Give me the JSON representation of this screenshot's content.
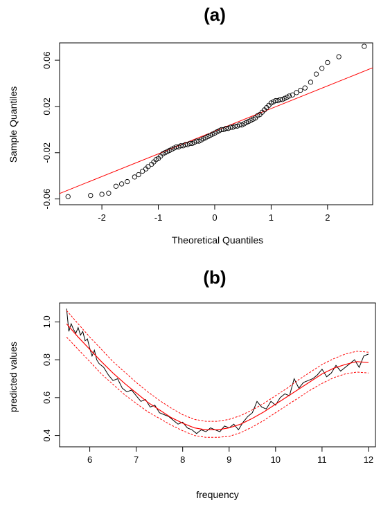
{
  "chart_data": [
    {
      "type": "scatter",
      "panel_label": "(a)",
      "xlabel": "Theoretical Quantiles",
      "ylabel": "Sample Quantiles",
      "xlim": [
        -2.75,
        2.8
      ],
      "ylim": [
        -0.065,
        0.075
      ],
      "xticks": [
        -2,
        -1,
        0,
        1,
        2
      ],
      "xtick_labels": [
        "-2",
        "-1",
        "0",
        "1",
        "2"
      ],
      "yticks": [
        -0.06,
        -0.02,
        0.02,
        0.06
      ],
      "ytick_labels": [
        "-0.06",
        "-0.02",
        "0.02",
        "0.06"
      ],
      "grid": false,
      "point_marker": "open-circle",
      "point_color": "#000000",
      "line_color": "#ff0000",
      "reference_line": {
        "intercept": -0.0014,
        "slope": 0.0196
      },
      "points": [
        [
          -2.6,
          -0.058
        ],
        [
          -2.2,
          -0.057
        ],
        [
          -2.0,
          -0.056
        ],
        [
          -1.88,
          -0.055
        ],
        [
          -1.75,
          -0.049
        ],
        [
          -1.65,
          -0.047
        ],
        [
          -1.55,
          -0.045
        ],
        [
          -1.42,
          -0.041
        ],
        [
          -1.35,
          -0.039
        ],
        [
          -1.28,
          -0.036
        ],
        [
          -1.22,
          -0.034
        ],
        [
          -1.18,
          -0.032
        ],
        [
          -1.12,
          -0.03
        ],
        [
          -1.08,
          -0.028
        ],
        [
          -1.04,
          -0.026
        ],
        [
          -1.0,
          -0.025
        ],
        [
          -0.96,
          -0.023
        ],
        [
          -0.92,
          -0.021
        ],
        [
          -0.88,
          -0.02
        ],
        [
          -0.84,
          -0.019
        ],
        [
          -0.8,
          -0.018
        ],
        [
          -0.76,
          -0.017
        ],
        [
          -0.72,
          -0.016
        ],
        [
          -0.68,
          -0.015
        ],
        [
          -0.64,
          -0.015
        ],
        [
          -0.6,
          -0.014
        ],
        [
          -0.56,
          -0.014
        ],
        [
          -0.52,
          -0.013
        ],
        [
          -0.48,
          -0.013
        ],
        [
          -0.44,
          -0.012
        ],
        [
          -0.4,
          -0.012
        ],
        [
          -0.36,
          -0.011
        ],
        [
          -0.32,
          -0.01
        ],
        [
          -0.28,
          -0.01
        ],
        [
          -0.24,
          -0.009
        ],
        [
          -0.2,
          -0.008
        ],
        [
          -0.16,
          -0.007
        ],
        [
          -0.12,
          -0.006
        ],
        [
          -0.08,
          -0.005
        ],
        [
          -0.04,
          -0.004
        ],
        [
          0.0,
          -0.003
        ],
        [
          0.04,
          -0.002
        ],
        [
          0.08,
          -0.001
        ],
        [
          0.12,
          0.0
        ],
        [
          0.16,
          0.0
        ],
        [
          0.2,
          0.001
        ],
        [
          0.24,
          0.001
        ],
        [
          0.28,
          0.002
        ],
        [
          0.32,
          0.002
        ],
        [
          0.36,
          0.003
        ],
        [
          0.4,
          0.003
        ],
        [
          0.44,
          0.004
        ],
        [
          0.48,
          0.004
        ],
        [
          0.52,
          0.005
        ],
        [
          0.56,
          0.006
        ],
        [
          0.6,
          0.007
        ],
        [
          0.64,
          0.008
        ],
        [
          0.68,
          0.009
        ],
        [
          0.72,
          0.01
        ],
        [
          0.76,
          0.012
        ],
        [
          0.8,
          0.013
        ],
        [
          0.84,
          0.015
        ],
        [
          0.88,
          0.017
        ],
        [
          0.92,
          0.019
        ],
        [
          0.96,
          0.021
        ],
        [
          1.0,
          0.023
        ],
        [
          1.04,
          0.024
        ],
        [
          1.08,
          0.025
        ],
        [
          1.12,
          0.025
        ],
        [
          1.16,
          0.026
        ],
        [
          1.2,
          0.026
        ],
        [
          1.24,
          0.027
        ],
        [
          1.28,
          0.028
        ],
        [
          1.32,
          0.029
        ],
        [
          1.38,
          0.03
        ],
        [
          1.45,
          0.032
        ],
        [
          1.52,
          0.034
        ],
        [
          1.6,
          0.036
        ],
        [
          1.7,
          0.041
        ],
        [
          1.8,
          0.048
        ],
        [
          1.9,
          0.053
        ],
        [
          2.0,
          0.058
        ],
        [
          2.2,
          0.063
        ],
        [
          2.65,
          0.072
        ]
      ]
    },
    {
      "type": "line",
      "panel_label": "(b)",
      "xlabel": "frequency",
      "ylabel": "predicted values",
      "xlim": [
        5.35,
        12.15
      ],
      "ylim": [
        0.34,
        1.1
      ],
      "xticks": [
        6,
        7,
        8,
        9,
        10,
        11,
        12
      ],
      "xtick_labels": [
        "6",
        "7",
        "8",
        "9",
        "10",
        "11",
        "12"
      ],
      "yticks": [
        0.4,
        0.6,
        0.8,
        1.0
      ],
      "ytick_labels": [
        "0.4",
        "0.6",
        "0.8",
        "1.0"
      ],
      "grid": false,
      "fit_color": "#ff0000",
      "observed_color": "#000000",
      "fit_x": [
        5.5,
        5.75,
        6.0,
        6.25,
        6.5,
        6.75,
        7.0,
        7.25,
        7.5,
        7.75,
        8.0,
        8.25,
        8.5,
        8.75,
        9.0,
        9.25,
        9.5,
        9.75,
        10.0,
        10.25,
        10.5,
        10.75,
        11.0,
        11.25,
        11.5,
        11.75,
        12.0
      ],
      "fit": [
        0.99,
        0.92,
        0.855,
        0.79,
        0.73,
        0.675,
        0.625,
        0.575,
        0.535,
        0.495,
        0.465,
        0.44,
        0.43,
        0.43,
        0.44,
        0.46,
        0.49,
        0.525,
        0.565,
        0.605,
        0.645,
        0.685,
        0.725,
        0.755,
        0.775,
        0.79,
        0.785
      ],
      "upper": [
        1.06,
        0.99,
        0.92,
        0.855,
        0.79,
        0.735,
        0.68,
        0.63,
        0.585,
        0.545,
        0.51,
        0.485,
        0.475,
        0.475,
        0.485,
        0.505,
        0.535,
        0.57,
        0.61,
        0.65,
        0.695,
        0.735,
        0.775,
        0.805,
        0.83,
        0.845,
        0.84
      ],
      "lower": [
        0.92,
        0.855,
        0.79,
        0.725,
        0.67,
        0.615,
        0.57,
        0.525,
        0.49,
        0.455,
        0.425,
        0.4,
        0.39,
        0.39,
        0.395,
        0.415,
        0.445,
        0.48,
        0.52,
        0.56,
        0.6,
        0.64,
        0.675,
        0.705,
        0.725,
        0.735,
        0.73
      ],
      "observed_x": [
        5.5,
        5.55,
        5.6,
        5.65,
        5.7,
        5.75,
        5.8,
        5.85,
        5.9,
        5.95,
        6.0,
        6.05,
        6.1,
        6.15,
        6.2,
        6.3,
        6.4,
        6.5,
        6.6,
        6.7,
        6.8,
        6.9,
        7.0,
        7.1,
        7.2,
        7.3,
        7.4,
        7.5,
        7.6,
        7.7,
        7.8,
        7.9,
        8.0,
        8.1,
        8.2,
        8.3,
        8.4,
        8.5,
        8.6,
        8.7,
        8.8,
        8.9,
        9.0,
        9.1,
        9.2,
        9.3,
        9.4,
        9.5,
        9.6,
        9.7,
        9.8,
        9.9,
        10.0,
        10.1,
        10.2,
        10.3,
        10.4,
        10.5,
        10.6,
        10.7,
        10.8,
        10.9,
        11.0,
        11.1,
        11.2,
        11.3,
        11.4,
        11.5,
        11.6,
        11.7,
        11.8,
        11.9,
        12.0
      ],
      "observed": [
        1.07,
        0.95,
        0.99,
        0.96,
        0.94,
        0.97,
        0.93,
        0.95,
        0.9,
        0.91,
        0.86,
        0.82,
        0.85,
        0.8,
        0.78,
        0.76,
        0.72,
        0.69,
        0.7,
        0.65,
        0.63,
        0.64,
        0.61,
        0.58,
        0.59,
        0.55,
        0.56,
        0.52,
        0.51,
        0.5,
        0.48,
        0.46,
        0.47,
        0.44,
        0.43,
        0.41,
        0.43,
        0.42,
        0.44,
        0.43,
        0.42,
        0.45,
        0.44,
        0.46,
        0.43,
        0.47,
        0.5,
        0.52,
        0.58,
        0.55,
        0.54,
        0.58,
        0.56,
        0.6,
        0.62,
        0.61,
        0.7,
        0.65,
        0.68,
        0.69,
        0.7,
        0.72,
        0.75,
        0.71,
        0.73,
        0.77,
        0.74,
        0.76,
        0.78,
        0.8,
        0.76,
        0.82,
        0.83
      ]
    }
  ]
}
